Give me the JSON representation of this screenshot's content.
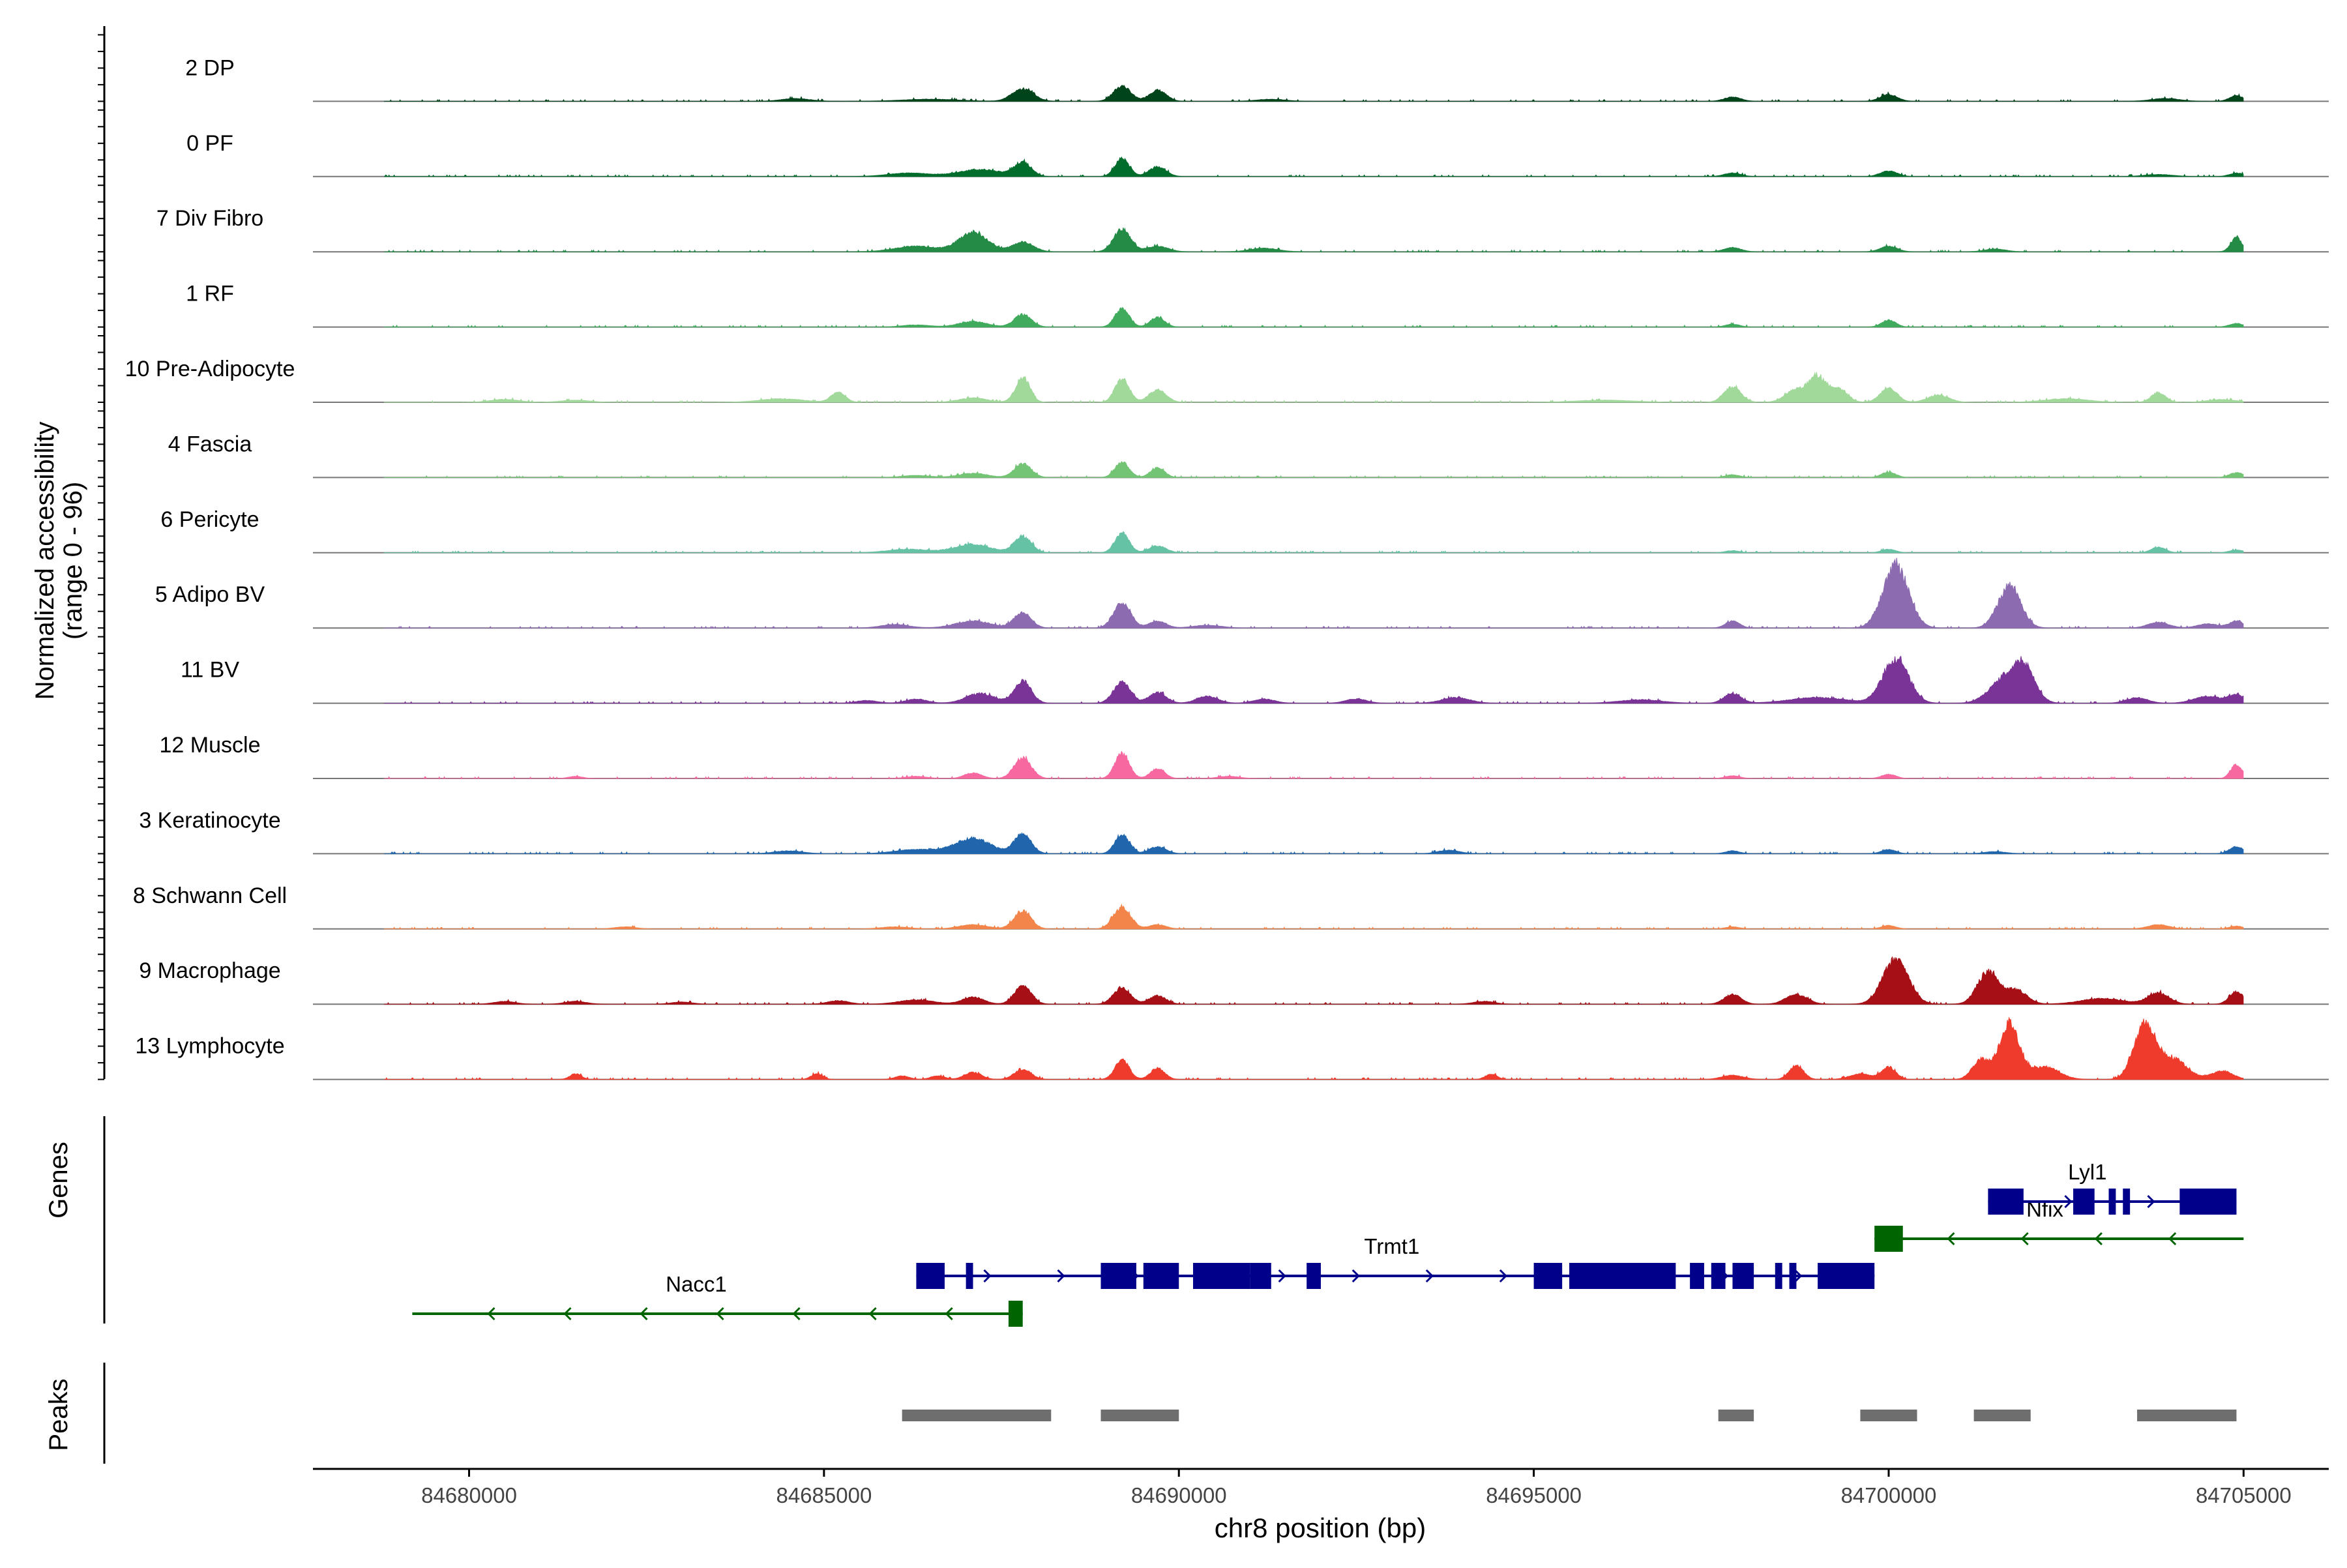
{
  "chart_data": {
    "type": "area",
    "title": "",
    "xlabel": "chr8 position (bp)",
    "ylabel": "Normalized accessibility",
    "ylabel_range": "(range 0 - 96)",
    "xlim": [
      84677800,
      84706200
    ],
    "ylim": [
      0,
      96
    ],
    "x_ticks": [
      84680000,
      84685000,
      84690000,
      84695000,
      84700000,
      84705000
    ],
    "x_tick_labels": [
      "84680000",
      "84685000",
      "84690000",
      "84695000",
      "84700000",
      "84705000"
    ],
    "track_labels": {
      "genes": "Genes",
      "peaks": "Peaks"
    },
    "series": [
      {
        "name": "2 DP",
        "color": "#00441b",
        "peaks": [
          [
            84684600,
            4,
            200
          ],
          [
            84686500,
            3,
            400
          ],
          [
            84687800,
            18,
            150
          ],
          [
            84689200,
            22,
            120
          ],
          [
            84689700,
            16,
            120
          ],
          [
            84691300,
            3,
            200
          ],
          [
            84697800,
            6,
            120
          ],
          [
            84700000,
            10,
            120
          ],
          [
            84703900,
            4,
            200
          ],
          [
            84704900,
            8,
            100
          ]
        ]
      },
      {
        "name": "0 PF",
        "color": "#006d2c",
        "peaks": [
          [
            84686200,
            5,
            300
          ],
          [
            84687200,
            10,
            300
          ],
          [
            84687800,
            20,
            120
          ],
          [
            84689200,
            26,
            100
          ],
          [
            84689700,
            14,
            120
          ],
          [
            84697800,
            5,
            120
          ],
          [
            84700000,
            8,
            120
          ],
          [
            84703800,
            3,
            200
          ],
          [
            84704900,
            5,
            100
          ]
        ]
      },
      {
        "name": "7 Div Fibro",
        "color": "#238b45",
        "peaks": [
          [
            84686300,
            8,
            300
          ],
          [
            84687100,
            28,
            200
          ],
          [
            84687800,
            14,
            150
          ],
          [
            84689200,
            32,
            120
          ],
          [
            84689700,
            8,
            150
          ],
          [
            84691200,
            5,
            200
          ],
          [
            84697800,
            6,
            120
          ],
          [
            84700000,
            8,
            120
          ],
          [
            84701500,
            4,
            150
          ],
          [
            84704900,
            20,
            80
          ]
        ]
      },
      {
        "name": "1 RF",
        "color": "#41ab5d",
        "peaks": [
          [
            84686300,
            3,
            200
          ],
          [
            84687100,
            8,
            200
          ],
          [
            84687800,
            18,
            120
          ],
          [
            84689200,
            26,
            100
          ],
          [
            84689700,
            14,
            100
          ],
          [
            84697800,
            4,
            100
          ],
          [
            84700000,
            10,
            100
          ],
          [
            84704900,
            5,
            100
          ]
        ]
      },
      {
        "name": "10 Pre-Adipocyte",
        "color": "#a1d99b",
        "peaks": [
          [
            84680500,
            4,
            200
          ],
          [
            84681500,
            3,
            200
          ],
          [
            84684400,
            5,
            300
          ],
          [
            84685200,
            14,
            100
          ],
          [
            84687100,
            6,
            200
          ],
          [
            84687800,
            36,
            100
          ],
          [
            84689200,
            34,
            100
          ],
          [
            84689700,
            18,
            120
          ],
          [
            84696000,
            3,
            400
          ],
          [
            84697800,
            22,
            120
          ],
          [
            84698700,
            18,
            150
          ],
          [
            84699000,
            36,
            120
          ],
          [
            84699300,
            18,
            120
          ],
          [
            84700000,
            20,
            120
          ],
          [
            84700700,
            10,
            150
          ],
          [
            84702500,
            5,
            300
          ],
          [
            84703800,
            14,
            100
          ],
          [
            84704700,
            4,
            200
          ]
        ]
      },
      {
        "name": "4 Fascia",
        "color": "#74c476",
        "peaks": [
          [
            84686300,
            3,
            200
          ],
          [
            84687100,
            6,
            200
          ],
          [
            84687800,
            20,
            120
          ],
          [
            84689200,
            22,
            100
          ],
          [
            84689700,
            14,
            100
          ],
          [
            84697800,
            4,
            100
          ],
          [
            84700000,
            8,
            100
          ],
          [
            84704900,
            7,
            100
          ]
        ]
      },
      {
        "name": "6 Pericyte",
        "color": "#66c2a4",
        "peaks": [
          [
            84686200,
            5,
            300
          ],
          [
            84687100,
            12,
            250
          ],
          [
            84687800,
            24,
            120
          ],
          [
            84689200,
            28,
            100
          ],
          [
            84689700,
            10,
            120
          ],
          [
            84697800,
            3,
            100
          ],
          [
            84700000,
            5,
            100
          ],
          [
            84703800,
            8,
            100
          ],
          [
            84704900,
            4,
            100
          ]
        ]
      },
      {
        "name": "5 Adipo BV",
        "color": "#8c6bb1",
        "peaks": [
          [
            84686000,
            5,
            200
          ],
          [
            84687100,
            10,
            250
          ],
          [
            84687800,
            22,
            120
          ],
          [
            84689200,
            36,
            120
          ],
          [
            84689700,
            10,
            120
          ],
          [
            84690400,
            4,
            200
          ],
          [
            84697800,
            10,
            100
          ],
          [
            84700100,
            90,
            180
          ],
          [
            84701700,
            60,
            160
          ],
          [
            84703800,
            8,
            150
          ],
          [
            84704500,
            6,
            150
          ],
          [
            84704900,
            10,
            100
          ]
        ]
      },
      {
        "name": "11 BV",
        "color": "#7a3396",
        "peaks": [
          [
            84685600,
            4,
            150
          ],
          [
            84686300,
            6,
            150
          ],
          [
            84687200,
            14,
            200
          ],
          [
            84687800,
            32,
            120
          ],
          [
            84689200,
            30,
            120
          ],
          [
            84689700,
            16,
            120
          ],
          [
            84690400,
            10,
            150
          ],
          [
            84691200,
            6,
            150
          ],
          [
            84692500,
            6,
            150
          ],
          [
            84693900,
            8,
            200
          ],
          [
            84696500,
            5,
            300
          ],
          [
            84697800,
            14,
            120
          ],
          [
            84699000,
            8,
            400
          ],
          [
            84700100,
            64,
            180
          ],
          [
            84701600,
            30,
            200
          ],
          [
            84701900,
            50,
            160
          ],
          [
            84703500,
            8,
            150
          ],
          [
            84704500,
            10,
            200
          ],
          [
            84704900,
            12,
            100
          ]
        ]
      },
      {
        "name": "12 Muscle",
        "color": "#f768a1",
        "peaks": [
          [
            84681500,
            3,
            100
          ],
          [
            84686300,
            3,
            150
          ],
          [
            84687100,
            8,
            120
          ],
          [
            84687800,
            30,
            120
          ],
          [
            84689200,
            36,
            100
          ],
          [
            84689700,
            14,
            100
          ],
          [
            84690700,
            3,
            150
          ],
          [
            84697800,
            4,
            100
          ],
          [
            84700000,
            6,
            100
          ],
          [
            84704900,
            20,
            80
          ]
        ]
      },
      {
        "name": "3 Keratinocyte",
        "color": "#2166ac",
        "peaks": [
          [
            84684500,
            4,
            200
          ],
          [
            84686300,
            6,
            300
          ],
          [
            84687100,
            22,
            250
          ],
          [
            84687800,
            28,
            120
          ],
          [
            84689200,
            28,
            100
          ],
          [
            84689700,
            10,
            120
          ],
          [
            84693800,
            5,
            150
          ],
          [
            84697800,
            4,
            100
          ],
          [
            84700000,
            6,
            100
          ],
          [
            84701500,
            3,
            150
          ],
          [
            84704900,
            10,
            100
          ]
        ]
      },
      {
        "name": "8 Schwann Cell",
        "color": "#f4854a",
        "peaks": [
          [
            84682200,
            3,
            150
          ],
          [
            84686000,
            3,
            200
          ],
          [
            84687100,
            6,
            200
          ],
          [
            84687800,
            26,
            120
          ],
          [
            84689200,
            32,
            120
          ],
          [
            84689700,
            6,
            120
          ],
          [
            84697800,
            3,
            100
          ],
          [
            84700000,
            5,
            100
          ],
          [
            84703800,
            6,
            150
          ],
          [
            84704900,
            4,
            100
          ]
        ]
      },
      {
        "name": "9 Macrophage",
        "color": "#a50f15",
        "peaks": [
          [
            84680500,
            4,
            150
          ],
          [
            84681500,
            4,
            150
          ],
          [
            84683000,
            3,
            150
          ],
          [
            84685200,
            5,
            150
          ],
          [
            84686300,
            6,
            250
          ],
          [
            84687100,
            10,
            150
          ],
          [
            84687800,
            26,
            120
          ],
          [
            84689200,
            24,
            120
          ],
          [
            84689700,
            12,
            120
          ],
          [
            84694300,
            4,
            150
          ],
          [
            84697800,
            14,
            120
          ],
          [
            84698700,
            14,
            150
          ],
          [
            84700100,
            64,
            180
          ],
          [
            84701400,
            46,
            150
          ],
          [
            84701800,
            20,
            150
          ],
          [
            84703000,
            8,
            300
          ],
          [
            84703800,
            16,
            150
          ],
          [
            84704900,
            18,
            100
          ]
        ]
      },
      {
        "name": "13 Lymphocyte",
        "color": "#ef3b2c",
        "peaks": [
          [
            84681500,
            8,
            80
          ],
          [
            84684900,
            8,
            80
          ],
          [
            84686100,
            5,
            100
          ],
          [
            84686600,
            5,
            100
          ],
          [
            84687100,
            10,
            120
          ],
          [
            84687800,
            14,
            120
          ],
          [
            84689200,
            28,
            100
          ],
          [
            84689700,
            16,
            100
          ],
          [
            84694400,
            8,
            80
          ],
          [
            84697800,
            6,
            150
          ],
          [
            84698700,
            20,
            100
          ],
          [
            84699600,
            8,
            150
          ],
          [
            84700000,
            18,
            100
          ],
          [
            84701300,
            28,
            120
          ],
          [
            84701700,
            80,
            140
          ],
          [
            84702200,
            18,
            200
          ],
          [
            84703600,
            78,
            150
          ],
          [
            84704000,
            30,
            200
          ],
          [
            84704700,
            12,
            150
          ]
        ]
      }
    ],
    "genes": [
      {
        "name": "Nacc1",
        "strand": "-",
        "color": "#006400",
        "start": 84679200,
        "end": 84687800,
        "row": 3,
        "label_x": 84683200,
        "exons": [
          [
            84687600,
            84687800
          ]
        ]
      },
      {
        "name": "Trmt1",
        "strand": "+",
        "color": "#00008b",
        "start": 84686300,
        "end": 84699800,
        "row": 2,
        "label_x": 84693000,
        "exons": [
          [
            84686300,
            84686700
          ],
          [
            84687000,
            84687100
          ],
          [
            84688900,
            84689400
          ],
          [
            84689500,
            84690000
          ],
          [
            84690200,
            84691000
          ],
          [
            84691000,
            84691300
          ],
          [
            84691800,
            84692000
          ],
          [
            84695000,
            84695400
          ],
          [
            84695500,
            84697000
          ],
          [
            84697200,
            84697400
          ],
          [
            84697500,
            84697700
          ],
          [
            84697800,
            84698100
          ],
          [
            84698400,
            84698500
          ],
          [
            84698600,
            84698700
          ],
          [
            84699000,
            84699800
          ]
        ]
      },
      {
        "name": "Nfix",
        "strand": "-",
        "color": "#006400",
        "start": 84699800,
        "end": 84705000,
        "row": 1,
        "label_x": 84702200,
        "exons": [
          [
            84699800,
            84700200
          ]
        ]
      },
      {
        "name": "Lyl1",
        "strand": "+",
        "color": "#00008b",
        "start": 84701400,
        "end": 84704900,
        "row": 0,
        "label_x": 84702800,
        "exons": [
          [
            84701400,
            84701900
          ],
          [
            84702600,
            84702900
          ],
          [
            84703100,
            84703200
          ],
          [
            84703300,
            84703400
          ],
          [
            84704100,
            84704900
          ]
        ]
      }
    ],
    "peak_regions": [
      [
        84686100,
        84688200
      ],
      [
        84688900,
        84690000
      ],
      [
        84697600,
        84698100
      ],
      [
        84699600,
        84700400
      ],
      [
        84701200,
        84702000
      ],
      [
        84703500,
        84704900
      ]
    ]
  }
}
